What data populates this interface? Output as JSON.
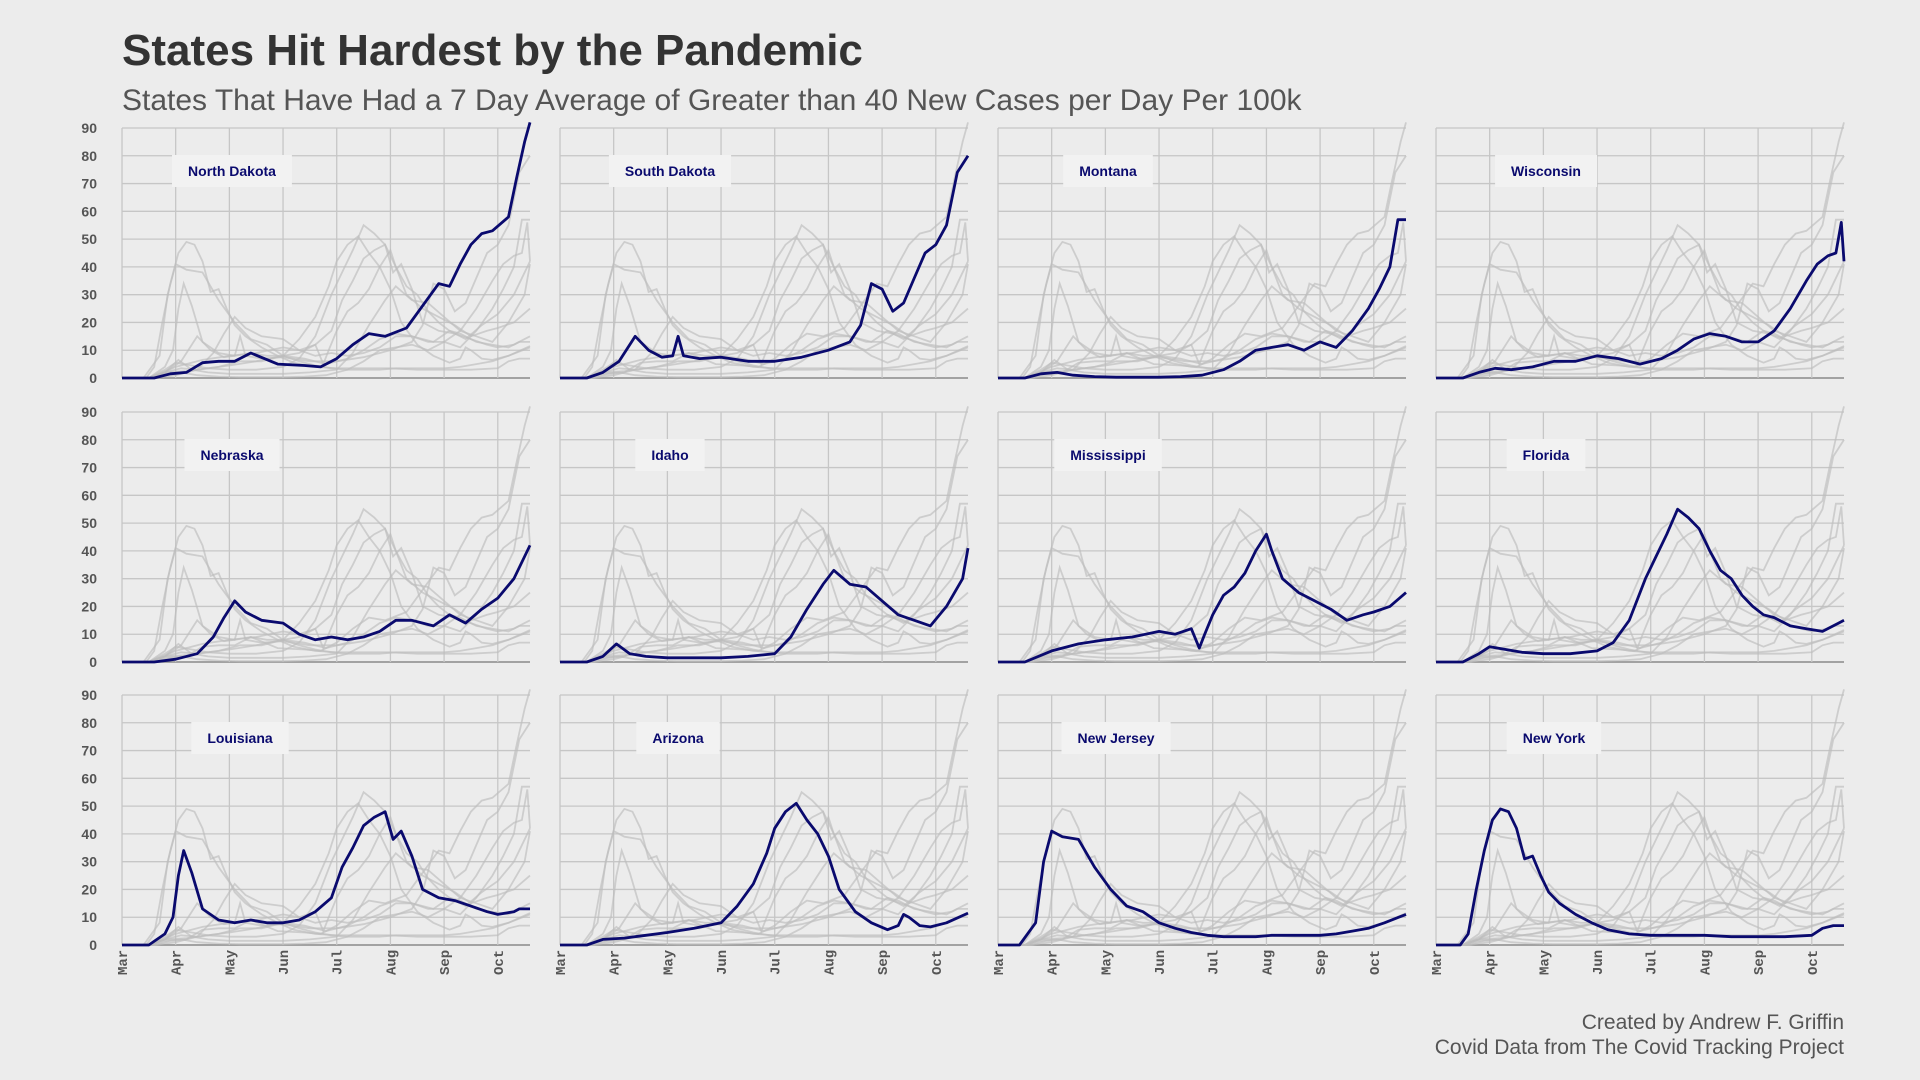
{
  "title": "States Hit Hardest by the Pandemic",
  "subtitle": "States That Have Had a 7 Day Average of Greater than 40 New Cases per Day Per 100k",
  "caption": [
    "Created by Andrew F. Griffin",
    "Covid Data from The Covid Tracking Project"
  ],
  "colors": {
    "highlight": "#0a0a6e",
    "context": "#bdbdbd",
    "background": "#ececec",
    "grid": "#c6c6c6"
  },
  "chart_data": {
    "type": "line",
    "layout": "small-multiples",
    "x_unit": "month",
    "x_ticks": [
      "Mar",
      "Apr",
      "May",
      "Jun",
      "Jul",
      "Aug",
      "Sep",
      "Oct"
    ],
    "xlim": [
      0,
      7.6
    ],
    "ylim": [
      0,
      90
    ],
    "y_ticks": [
      0,
      10,
      20,
      30,
      40,
      50,
      60,
      70,
      80,
      90
    ],
    "grid": true,
    "series": [
      {
        "name": "North Dakota",
        "x": [
          0,
          0.6,
          0.9,
          1.2,
          1.5,
          1.8,
          2.1,
          2.4,
          2.9,
          3.4,
          3.7,
          4.0,
          4.3,
          4.6,
          4.9,
          5.3,
          5.6,
          5.9,
          6.1,
          6.3,
          6.5,
          6.7,
          6.9,
          7.2,
          7.35,
          7.5,
          7.6
        ],
        "y": [
          0,
          0,
          1.5,
          2,
          5.5,
          6,
          6,
          9,
          5,
          4.5,
          4,
          7,
          12,
          16,
          15,
          18,
          26,
          34,
          33,
          41,
          48,
          52,
          53,
          58,
          72,
          85,
          92
        ]
      },
      {
        "name": "South Dakota",
        "x": [
          0,
          0.5,
          0.8,
          1.1,
          1.4,
          1.65,
          1.9,
          2.1,
          2.2,
          2.3,
          2.6,
          3.0,
          3.5,
          4.0,
          4.5,
          5.0,
          5.4,
          5.6,
          5.8,
          6.0,
          6.2,
          6.4,
          6.6,
          6.8,
          7.0,
          7.2,
          7.4,
          7.6
        ],
        "y": [
          0,
          0,
          2,
          6,
          15,
          10,
          7.5,
          8,
          15,
          8,
          7,
          7.5,
          6,
          6,
          7.5,
          10,
          13,
          19,
          34,
          32,
          24,
          27,
          36,
          45,
          48,
          55,
          74,
          80
        ]
      },
      {
        "name": "Montana",
        "x": [
          0,
          0.5,
          0.8,
          1.1,
          1.4,
          1.8,
          2.2,
          2.6,
          3.0,
          3.4,
          3.8,
          4.2,
          4.5,
          4.8,
          5.1,
          5.4,
          5.7,
          6.0,
          6.3,
          6.6,
          6.9,
          7.1,
          7.3,
          7.45,
          7.6
        ],
        "y": [
          0,
          0,
          1.5,
          2,
          1,
          0.5,
          0.3,
          0.3,
          0.3,
          0.5,
          1,
          3,
          6,
          10,
          11,
          12,
          10,
          13,
          11,
          17,
          25,
          32,
          40,
          57,
          57
        ]
      },
      {
        "name": "Wisconsin",
        "x": [
          0,
          0.5,
          0.8,
          1.1,
          1.4,
          1.8,
          2.2,
          2.6,
          3.0,
          3.4,
          3.8,
          4.2,
          4.5,
          4.8,
          5.1,
          5.4,
          5.7,
          6.0,
          6.3,
          6.6,
          6.9,
          7.1,
          7.3,
          7.45,
          7.55,
          7.6
        ],
        "y": [
          0,
          0,
          2,
          3.5,
          3,
          4,
          6,
          6,
          8,
          7,
          5,
          7,
          10,
          14,
          16,
          15,
          13,
          13,
          17,
          25,
          35,
          41,
          44,
          45,
          56,
          42
        ]
      },
      {
        "name": "Nebraska",
        "x": [
          0,
          0.6,
          1.0,
          1.4,
          1.7,
          1.9,
          2.1,
          2.3,
          2.6,
          3.0,
          3.3,
          3.6,
          3.9,
          4.2,
          4.5,
          4.8,
          5.1,
          5.4,
          5.8,
          6.1,
          6.4,
          6.7,
          7.0,
          7.3,
          7.6
        ],
        "y": [
          0,
          0,
          1,
          3,
          9,
          16,
          22,
          18,
          15,
          14,
          10,
          8,
          9,
          8,
          9,
          11,
          15,
          15,
          13,
          17,
          14,
          19,
          23,
          30,
          42
        ]
      },
      {
        "name": "Idaho",
        "x": [
          0,
          0.5,
          0.8,
          1.05,
          1.3,
          1.6,
          2.0,
          2.5,
          3.0,
          3.5,
          4.0,
          4.3,
          4.6,
          4.9,
          5.1,
          5.4,
          5.7,
          6.0,
          6.3,
          6.6,
          6.9,
          7.2,
          7.5,
          7.6
        ],
        "y": [
          0,
          0,
          2,
          6.5,
          3,
          2,
          1.5,
          1.5,
          1.5,
          2,
          3,
          9,
          19,
          28,
          33,
          28,
          27,
          22,
          17,
          15,
          13,
          20,
          30,
          41
        ]
      },
      {
        "name": "Mississippi",
        "x": [
          0,
          0.5,
          1.0,
          1.5,
          2.0,
          2.5,
          3.0,
          3.3,
          3.6,
          3.75,
          3.85,
          4.0,
          4.2,
          4.4,
          4.6,
          4.8,
          5.0,
          5.1,
          5.3,
          5.6,
          5.9,
          6.2,
          6.5,
          6.8,
          7.0,
          7.3,
          7.6
        ],
        "y": [
          0,
          0,
          4,
          6.5,
          8,
          9,
          11,
          10,
          12,
          5,
          10,
          17,
          24,
          27,
          32,
          40,
          46,
          40,
          30,
          25,
          22,
          19,
          15,
          17,
          18,
          20,
          25
        ]
      },
      {
        "name": "Florida",
        "x": [
          0,
          0.5,
          0.8,
          1.0,
          1.3,
          1.6,
          2.0,
          2.5,
          3.0,
          3.3,
          3.6,
          3.9,
          4.1,
          4.3,
          4.5,
          4.7,
          4.9,
          5.1,
          5.3,
          5.5,
          5.7,
          5.9,
          6.1,
          6.3,
          6.6,
          6.9,
          7.2,
          7.5,
          7.6
        ],
        "y": [
          0,
          0,
          3,
          5.5,
          4.5,
          3.5,
          3,
          3,
          4,
          7,
          15,
          30,
          38,
          46,
          55,
          52,
          48,
          40,
          33,
          30,
          24,
          20,
          17,
          16,
          13,
          12,
          11,
          14,
          15
        ]
      },
      {
        "name": "Louisiana",
        "x": [
          0,
          0.5,
          0.8,
          0.95,
          1.05,
          1.15,
          1.3,
          1.5,
          1.8,
          2.1,
          2.4,
          2.7,
          3.0,
          3.3,
          3.6,
          3.9,
          4.1,
          4.3,
          4.5,
          4.7,
          4.9,
          5.05,
          5.2,
          5.4,
          5.6,
          5.9,
          6.2,
          6.5,
          6.8,
          7.0,
          7.3,
          7.4,
          7.6
        ],
        "y": [
          0,
          0,
          4,
          10,
          25,
          34,
          26,
          13,
          9,
          8,
          9,
          8,
          8,
          9,
          12,
          17,
          28,
          35,
          43,
          46,
          48,
          38,
          41,
          32,
          20,
          17,
          16,
          14,
          12,
          11,
          12,
          13,
          13
        ]
      },
      {
        "name": "Arizona",
        "x": [
          0,
          0.5,
          0.8,
          1.2,
          1.6,
          2.0,
          2.5,
          3.0,
          3.3,
          3.6,
          3.85,
          4.0,
          4.2,
          4.4,
          4.6,
          4.8,
          5.0,
          5.2,
          5.5,
          5.8,
          6.1,
          6.3,
          6.4,
          6.5,
          6.7,
          6.9,
          7.2,
          7.6
        ],
        "y": [
          0,
          0,
          2,
          2.5,
          3.5,
          4.5,
          6,
          8,
          14,
          22,
          33,
          42,
          48,
          51,
          45,
          40,
          32,
          20,
          12,
          8,
          5.5,
          7,
          11,
          10,
          7,
          6.5,
          8,
          11.5
        ]
      },
      {
        "name": "New Jersey",
        "x": [
          0,
          0.4,
          0.7,
          0.85,
          1.0,
          1.2,
          1.5,
          1.8,
          2.1,
          2.4,
          2.7,
          3.0,
          3.3,
          3.6,
          3.9,
          4.2,
          4.5,
          4.8,
          5.1,
          5.4,
          5.7,
          6.0,
          6.3,
          6.6,
          6.9,
          7.2,
          7.6
        ],
        "y": [
          0,
          0,
          8,
          30,
          41,
          39,
          38,
          28,
          20,
          14,
          12,
          8,
          6,
          4.5,
          3.5,
          3,
          3,
          3,
          3.5,
          3.5,
          3.5,
          3.5,
          4,
          5,
          6,
          8,
          11
        ]
      },
      {
        "name": "New York",
        "x": [
          0,
          0.45,
          0.6,
          0.75,
          0.9,
          1.05,
          1.2,
          1.35,
          1.5,
          1.65,
          1.8,
          1.95,
          2.1,
          2.3,
          2.6,
          2.9,
          3.2,
          3.6,
          4.0,
          4.5,
          5.0,
          5.5,
          6.0,
          6.5,
          7.0,
          7.2,
          7.4,
          7.6
        ],
        "y": [
          0,
          0,
          4,
          20,
          34,
          45,
          49,
          48,
          42,
          31,
          32,
          25,
          19,
          15,
          11,
          8,
          5.5,
          4,
          3.5,
          3.5,
          3.5,
          3,
          3,
          3,
          3.5,
          6,
          7,
          7
        ]
      }
    ]
  }
}
